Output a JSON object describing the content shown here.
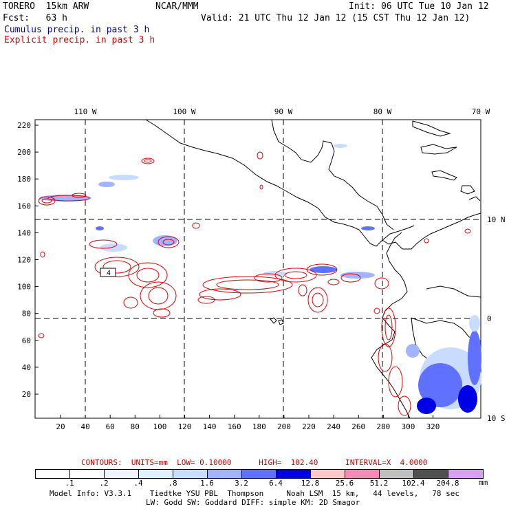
{
  "header": {
    "model": "TORERO  15km ARW",
    "org": "NCAR/MMM",
    "init": "Init: 06 UTC Tue 10 Jan 12",
    "fcst": "Fcst:   63 h",
    "valid": "Valid: 21 UTC Thu 12 Jan 12 (15 CST Thu 12 Jan 12)",
    "cumulus_label": "Cumulus precip. in past 3 h",
    "explicit_label": "Explicit precip. in past 3 h",
    "cumulus_color": "#00009a",
    "explicit_color": "#e00000"
  },
  "map": {
    "lon_labels": [
      "110 W",
      "100 W",
      "90 W",
      "80 W",
      "70 W"
    ],
    "lat_labels": [
      "10 N",
      "0",
      "10 S"
    ],
    "y_ticks": [
      "220",
      "200",
      "180",
      "160",
      "140",
      "120",
      "100",
      "80",
      "60",
      "40",
      "20"
    ],
    "x_ticks": [
      "20",
      "40",
      "60",
      "80",
      "100",
      "120",
      "140",
      "160",
      "180",
      "200",
      "220",
      "240",
      "260",
      "280",
      "300",
      "320"
    ],
    "contour_marker": "4"
  },
  "contours": {
    "text": "CONTOURS:  UNITS=mm  LOW= 0.10000      HIGH=  102.40      INTERVAL=X  4.0000"
  },
  "legend": {
    "unit": "mm",
    "thresholds": [
      ".1",
      ".2",
      ".4",
      ".8",
      "1.6",
      "3.2",
      "6.4",
      "12.8",
      "25.6",
      "51.2",
      "102.4",
      "204.8"
    ],
    "colors": [
      "#ffffff",
      "#ffffff",
      "#f0f4ff",
      "#e1f0ff",
      "#c8dcff",
      "#a0b4ff",
      "#6070ff",
      "#0000e6",
      "#ffc8c8",
      "#f88ab8",
      "#c0c0c0",
      "#505050",
      "#d7a0f5"
    ]
  },
  "footer": {
    "line1": "Model Info: V3.3.1    Tiedtke YSU PBL  Thompson     Noah LSM  15 km,   44 levels,   78 sec",
    "line2": "LW: Godd SW: Goddard DIFF: simple KM: 2D Smagor"
  }
}
